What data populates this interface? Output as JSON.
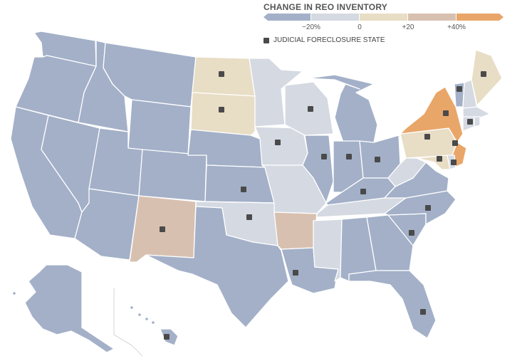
{
  "legend": {
    "title": "CHANGE IN REO INVENTORY",
    "ticks": [
      "−20%",
      "0",
      "+20",
      "+40%"
    ],
    "judicial_label": "JUDICIAL FORECLOSURE STATE"
  },
  "colors": {
    "much_lower": "#a3b0c8",
    "lower": "#d4d9e2",
    "slightly_higher": "#e8ddc5",
    "higher": "#d8c0b0",
    "much_higher": "#e9a669",
    "judicial_marker": "#4a4a4a"
  },
  "states": [
    {
      "code": "WA",
      "category": "much_lower",
      "judicial": false
    },
    {
      "code": "OR",
      "category": "much_lower",
      "judicial": false
    },
    {
      "code": "CA",
      "category": "much_lower",
      "judicial": false
    },
    {
      "code": "NV",
      "category": "much_lower",
      "judicial": false
    },
    {
      "code": "ID",
      "category": "much_lower",
      "judicial": false
    },
    {
      "code": "MT",
      "category": "much_lower",
      "judicial": false
    },
    {
      "code": "WY",
      "category": "much_lower",
      "judicial": false
    },
    {
      "code": "UT",
      "category": "much_lower",
      "judicial": false
    },
    {
      "code": "AZ",
      "category": "much_lower",
      "judicial": false
    },
    {
      "code": "CO",
      "category": "much_lower",
      "judicial": false
    },
    {
      "code": "NM",
      "category": "higher",
      "judicial": true
    },
    {
      "code": "ND",
      "category": "slightly_higher",
      "judicial": true
    },
    {
      "code": "SD",
      "category": "slightly_higher",
      "judicial": true
    },
    {
      "code": "NE",
      "category": "much_lower",
      "judicial": false
    },
    {
      "code": "KS",
      "category": "much_lower",
      "judicial": true
    },
    {
      "code": "OK",
      "category": "lower",
      "judicial": true
    },
    {
      "code": "TX",
      "category": "much_lower",
      "judicial": false
    },
    {
      "code": "MN",
      "category": "lower",
      "judicial": false
    },
    {
      "code": "IA",
      "category": "lower",
      "judicial": true
    },
    {
      "code": "MO",
      "category": "lower",
      "judicial": false
    },
    {
      "code": "AR",
      "category": "higher",
      "judicial": false
    },
    {
      "code": "LA",
      "category": "much_lower",
      "judicial": true
    },
    {
      "code": "WI",
      "category": "lower",
      "judicial": true
    },
    {
      "code": "IL",
      "category": "much_lower",
      "judicial": true
    },
    {
      "code": "MI",
      "category": "much_lower",
      "judicial": false
    },
    {
      "code": "IN",
      "category": "much_lower",
      "judicial": true
    },
    {
      "code": "OH",
      "category": "much_lower",
      "judicial": true
    },
    {
      "code": "KY",
      "category": "much_lower",
      "judicial": true
    },
    {
      "code": "TN",
      "category": "lower",
      "judicial": false
    },
    {
      "code": "MS",
      "category": "lower",
      "judicial": false
    },
    {
      "code": "AL",
      "category": "much_lower",
      "judicial": false
    },
    {
      "code": "GA",
      "category": "much_lower",
      "judicial": false
    },
    {
      "code": "FL",
      "category": "much_lower",
      "judicial": true
    },
    {
      "code": "SC",
      "category": "much_lower",
      "judicial": true
    },
    {
      "code": "NC",
      "category": "much_lower",
      "judicial": true
    },
    {
      "code": "VA",
      "category": "much_lower",
      "judicial": false
    },
    {
      "code": "WV",
      "category": "lower",
      "judicial": false
    },
    {
      "code": "PA",
      "category": "slightly_higher",
      "judicial": true
    },
    {
      "code": "NY",
      "category": "much_higher",
      "judicial": true
    },
    {
      "code": "NJ",
      "category": "much_higher",
      "judicial": true
    },
    {
      "code": "MD",
      "category": "slightly_higher",
      "judicial": true
    },
    {
      "code": "DE",
      "category": "lower",
      "judicial": true
    },
    {
      "code": "VT",
      "category": "much_lower",
      "judicial": true
    },
    {
      "code": "NH",
      "category": "lower",
      "judicial": false
    },
    {
      "code": "ME",
      "category": "slightly_higher",
      "judicial": true
    },
    {
      "code": "MA",
      "category": "lower",
      "judicial": false
    },
    {
      "code": "CT",
      "category": "lower",
      "judicial": true
    },
    {
      "code": "RI",
      "category": "lower",
      "judicial": false
    },
    {
      "code": "AK",
      "category": "much_lower",
      "judicial": false
    },
    {
      "code": "HI",
      "category": "much_lower",
      "judicial": true
    }
  ]
}
